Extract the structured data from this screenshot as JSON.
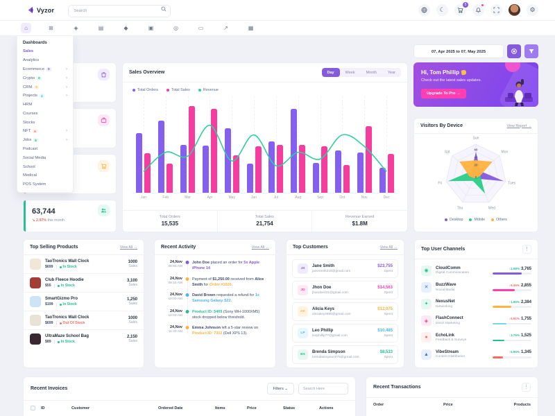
{
  "header": {
    "brand": "Vyzor",
    "search_placeholder": "Search",
    "cart_badge": "5",
    "icons": [
      "language-icon",
      "dark-mode-icon",
      "cart-icon",
      "bell-icon",
      "fullscreen-icon",
      "avatar",
      "settings-icon"
    ]
  },
  "nav": {
    "icons": [
      {
        "name": "home-icon",
        "glyph": "⌂",
        "active": true
      },
      {
        "name": "apps-icon",
        "glyph": "⊞",
        "active": false
      },
      {
        "name": "crypto-icon",
        "glyph": "◈",
        "active": false
      },
      {
        "name": "pages-icon",
        "glyph": "▤",
        "active": false
      },
      {
        "name": "nft-icon",
        "glyph": "◆",
        "active": false
      },
      {
        "name": "jobs-icon",
        "glyph": "▣",
        "active": false
      },
      {
        "name": "discover-icon",
        "glyph": "◎",
        "active": false
      },
      {
        "name": "ecommerce-icon",
        "glyph": "▭",
        "active": false
      },
      {
        "name": "charts-icon",
        "glyph": "↗",
        "active": false
      },
      {
        "name": "tables-icon",
        "glyph": "▦",
        "active": false
      }
    ]
  },
  "sidebar": {
    "title": "Dashboards",
    "items": [
      {
        "label": "Sales",
        "active": true
      },
      {
        "label": "Analytics"
      },
      {
        "label": "Ecommerce",
        "badge": "9",
        "badge_color": "#845adf",
        "badge_bg": "#f1ecfd",
        "expand": true
      },
      {
        "label": "Crypto",
        "badge": "6",
        "badge_color": "#26bf94",
        "badge_bg": "#e5f8f1",
        "expand": true
      },
      {
        "label": "CRM",
        "badge": "5",
        "badge_color": "#ffb340",
        "badge_bg": "#fff4e3",
        "expand": true
      },
      {
        "label": "Projects",
        "badge": "4",
        "badge_color": "#49b6f5",
        "badge_bg": "#e8f6fe",
        "expand": true
      },
      {
        "label": "HRM"
      },
      {
        "label": "Courses"
      },
      {
        "label": "Stocks"
      },
      {
        "label": "NFT",
        "badge": "6",
        "badge_color": "#fd6a65",
        "badge_bg": "#ffefee",
        "expand": true
      },
      {
        "label": "Jobs",
        "badge": "8",
        "badge_color": "#26bf94",
        "badge_bg": "#e5f8f1",
        "expand": true
      },
      {
        "label": "Podcast"
      },
      {
        "label": "Social Media"
      },
      {
        "label": "School"
      },
      {
        "label": "Medical"
      },
      {
        "label": "POS System"
      }
    ]
  },
  "stat_cards": {
    "hidden": [
      {
        "icon": "shopping-bag-icon",
        "accent": "#845adf",
        "chip_bg": "#f1ecfd"
      },
      {
        "icon": "briefcase-icon",
        "accent": "#fe3eb1",
        "chip_bg": "#fde8f5"
      },
      {
        "icon": "cart-icon",
        "accent": "#ffb340",
        "chip_bg": "#fff4e3"
      }
    ],
    "customers": {
      "icon": "users-icon",
      "accent": "#26bf94",
      "chip_bg": "#e5f8f1",
      "value": "63,744",
      "arrow": "↘",
      "change": "2.97%",
      "suffix": "this month"
    }
  },
  "sales_overview": {
    "title": "Sales Overview",
    "tabs": [
      "Day",
      "Week",
      "Month",
      "Year"
    ],
    "active_tab": 0,
    "stats": [
      {
        "label": "Total Orders",
        "value": "15,535"
      },
      {
        "label": "Total Sales",
        "value": "21,754"
      },
      {
        "label": "Revenue Earned",
        "value": "$1.8M"
      }
    ]
  },
  "chart_data": [
    {
      "type": "bar",
      "title": "Sales Overview",
      "categories": [
        "Jan",
        "Feb",
        "Mar",
        "Apr",
        "May",
        "Jun",
        "Jul",
        "Aug",
        "Sep",
        "Oct",
        "Nov",
        "Dec"
      ],
      "series": [
        {
          "name": "Total Orders",
          "type": "bar",
          "color": "#8360f0",
          "values": [
            62,
            75,
            50,
            49,
            67,
            30,
            53,
            87,
            31,
            44,
            42,
            26
          ]
        },
        {
          "name": "Total Sales",
          "type": "bar",
          "color": "#f53d9f",
          "values": [
            41,
            30,
            90,
            87,
            39,
            48,
            50,
            50,
            48,
            29,
            69,
            40
          ]
        },
        {
          "name": "Revenue",
          "type": "line",
          "color": "#2fce9f",
          "values": [
            22,
            42,
            38,
            70,
            33,
            60,
            28,
            42,
            35,
            60,
            48,
            22
          ]
        }
      ],
      "ylim": [
        0,
        100
      ],
      "grid": "vertical-dashed",
      "legend_position": "top-left"
    },
    {
      "type": "radar",
      "title": "Visitors By Device",
      "axes": [
        "Sun",
        "Mon",
        "Tues",
        "Wed",
        "Thu",
        "Fri",
        "Sat"
      ],
      "ticks": [
        0,
        20,
        40,
        60
      ],
      "max": 80,
      "series": [
        {
          "name": "Desktop",
          "color": "#845adf",
          "values": [
            60,
            15,
            75,
            12,
            12,
            10,
            15
          ]
        },
        {
          "name": "Mobile",
          "color": "#2dce89",
          "values": [
            8,
            10,
            12,
            55,
            18,
            75,
            15
          ]
        },
        {
          "name": "Others",
          "color": "#ffb340",
          "values": [
            38,
            55,
            12,
            8,
            10,
            18,
            55
          ]
        }
      ],
      "legend_position": "bottom"
    }
  ],
  "date_range": {
    "value": "07, Apr 2025 to 07, May 2025"
  },
  "greeting": {
    "title": "Hi, Tom Phillip",
    "subtitle": "Check out the latest sales updates.",
    "button": "Upgrade To Pro →"
  },
  "visitors": {
    "title": "Visitors By Device",
    "link": "View Report →"
  },
  "top_products": {
    "title": "Top Selling Products",
    "link": "View All →",
    "items": [
      {
        "name": "TaoTronics Wall Clock",
        "price": "$699",
        "status": "In Stock",
        "in_stock": true,
        "sales": "1000",
        "sales_label": "Sales",
        "thumb": "#f1e7d8"
      },
      {
        "name": "Club Fleece Hoodie",
        "price": "$55",
        "status": "In Stock",
        "in_stock": true,
        "sales": "3,100",
        "sales_label": "Sales",
        "thumb": "#a33d35"
      },
      {
        "name": "SmartGizmo Pro",
        "price": "$199",
        "status": "In Stock",
        "in_stock": true,
        "sales": "1,250",
        "sales_label": "Sales",
        "thumb": "#cfe3f6"
      },
      {
        "name": "TaoTronics Wall Clock",
        "price": "$699",
        "status": "Out Of Stock",
        "in_stock": false,
        "sales": "1000",
        "sales_label": "Sales",
        "thumb": "#e9e3d6"
      },
      {
        "name": "UltraMaze School Bag",
        "price": "$89",
        "status": "In Stock",
        "in_stock": true,
        "sales": "2,150",
        "sales_label": "Sales",
        "thumb": "#3a2730"
      }
    ]
  },
  "recent_activity": {
    "title": "Recent Activity",
    "link": "View All →",
    "items": [
      {
        "date": "24,Nov",
        "time": "08:45 AM",
        "dot": "#845adf",
        "parts": [
          {
            "t": "John Doe",
            "b": true
          },
          {
            "t": " placed an order for "
          },
          {
            "t": "5x Apple iPhone 14",
            "c": "#845adf"
          }
        ]
      },
      {
        "date": "24,Nov",
        "time": "09:15 AM",
        "dot": "#ffb340",
        "parts": [
          {
            "t": "Payment of "
          },
          {
            "t": "$1,250.00",
            "b": true
          },
          {
            "t": " received from "
          },
          {
            "t": "Alice Smith",
            "b": true
          },
          {
            "t": " for "
          },
          {
            "t": "Order #1020",
            "c": "#ffb340"
          },
          {
            "t": "."
          }
        ]
      },
      {
        "date": "24,Nov",
        "time": "10:00 AM",
        "dot": "#49b6f5",
        "parts": [
          {
            "t": "David Brown",
            "b": true
          },
          {
            "t": " requested a refund for "
          },
          {
            "t": "1x Samsung Galaxy S22",
            "c": "#49b6f5"
          },
          {
            "t": "."
          }
        ]
      },
      {
        "date": "24,Nov",
        "time": "10:45 AM",
        "dot": "#26bf94",
        "parts": [
          {
            "t": "Product ID: 5409",
            "c": "#26bf94"
          },
          {
            "t": " (Sony WH-1000XM5) stock dropped below threshold."
          }
        ]
      },
      {
        "date": "24,Nov",
        "time": "11:30 AM",
        "dot": "#ffb340",
        "parts": [
          {
            "t": "Emma Johnson",
            "b": true
          },
          {
            "t": " left a 5-star review on "
          },
          {
            "t": "Product ID: 7312",
            "c": "#ffb340"
          },
          {
            "t": " (Dell XPS 13)."
          }
        ]
      }
    ]
  },
  "top_customers": {
    "title": "Top Customers",
    "link": "View All →",
    "spent_label": "Spent",
    "items": [
      {
        "initials": "JS",
        "name": "Jane Smith",
        "email": "janesmith215@gmail.com",
        "amount": "$23,755",
        "color": "#845adf",
        "bg": "#f1ecfd"
      },
      {
        "initials": "JD",
        "name": "Jhon Doe",
        "email": "jhondoe431@gmail.com",
        "amount": "$14,563",
        "color": "#fe3eb1",
        "bg": "#fde8f5"
      },
      {
        "initials": "AK",
        "name": "Alicia Keys",
        "email": "aliciakeys966@gmail.com",
        "amount": "$12,075",
        "color": "#ffb340",
        "bg": "#fff4e3"
      },
      {
        "initials": "LP",
        "name": "Leo Phillip",
        "email": "leophillip77@gmail.com",
        "amount": "$10,485",
        "color": "#49b6f5",
        "bg": "#e8f6fe"
      },
      {
        "initials": "BS",
        "name": "Brenda Simpson",
        "email": "brendasimpson075@gmail.com",
        "amount": "$8,533",
        "color": "#26bf94",
        "bg": "#e5f8f1"
      }
    ]
  },
  "top_channels": {
    "title": "Top User Channels",
    "items": [
      {
        "name": "CloudComm",
        "sub": "Digital Communication",
        "change": "2.98%",
        "dir": "up",
        "count": "3,765",
        "bar": "#845adf",
        "pct": 75,
        "icon": "◉",
        "icon_color": "#26bf94",
        "icon_bg": "#e5f8f1"
      },
      {
        "name": "BuzzWave",
        "sub": "Social Media",
        "change": "6.45%",
        "dir": "down",
        "count": "2,855",
        "bar": "#fe3eb1",
        "pct": 57,
        "icon": "✕",
        "icon_color": "#3b6fe0",
        "icon_bg": "#e8f0fe"
      },
      {
        "name": "NexusNet",
        "sub": "Networking",
        "change": "1.95%",
        "dir": "up",
        "count": "2,384",
        "bar": "#ffb340",
        "pct": 48,
        "icon": "✦",
        "icon_color": "#26bf94",
        "icon_bg": "#e5f8f1"
      },
      {
        "name": "FlashConnect",
        "sub": "Direct Marketing",
        "change": "5.91%",
        "dir": "down",
        "count": "1,755",
        "bar": "#7ed0f2",
        "pct": 35,
        "icon": "◈",
        "icon_color": "#e0457b",
        "icon_bg": "#fde8f5"
      },
      {
        "name": "EchoLink",
        "sub": "Feedback & Surveys",
        "change": "3.75%",
        "dir": "up",
        "count": "1,525",
        "bar": "#26bf94",
        "pct": 30,
        "icon": "●",
        "icon_color": "#fd6a65",
        "icon_bg": "#fff0ee"
      },
      {
        "name": "VibeStream",
        "sub": "Content Distribution",
        "change": "0.95%",
        "dir": "up",
        "count": "1,345",
        "bar": "#fd6a65",
        "pct": 27,
        "icon": "▲",
        "icon_color": "#3b6fe0",
        "icon_bg": "#e8f0fe"
      }
    ]
  },
  "invoices": {
    "title": "Recent Invoices",
    "filters_label": "Filters ⌄",
    "search_placeholder": "Search Here",
    "columns": [
      "ID",
      "Customer",
      "Ordered Date",
      "Items",
      "Price",
      "Status",
      "Actions"
    ]
  },
  "transactions": {
    "title": "Recent Transactions",
    "columns": [
      "Order",
      "Price",
      "Products"
    ]
  }
}
